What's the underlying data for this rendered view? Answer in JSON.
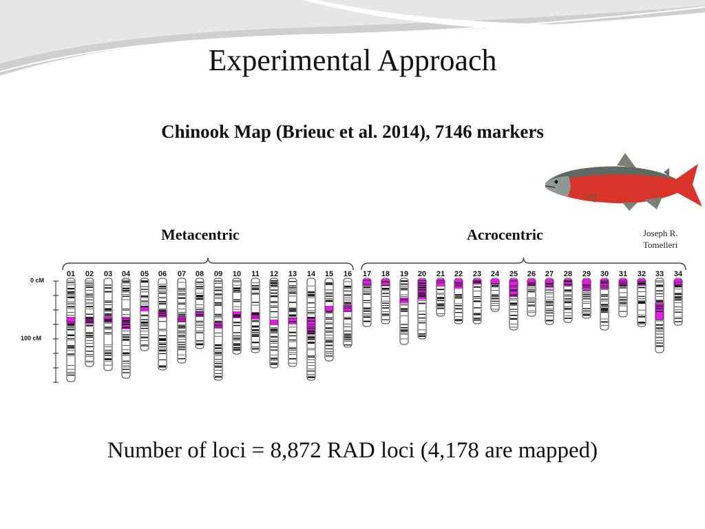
{
  "slide": {
    "title": "Experimental Approach",
    "subtitle": "Chinook Map (Brieuc et al. 2014), 7146 markers",
    "credit_line1": "Joseph R.",
    "credit_line2": "Tomelleri",
    "footer": "Number of loci = 8,872 RAD loci (4,178 are mapped)"
  },
  "linkage_map": {
    "axis_labels": [
      "0 cM",
      "100 cM"
    ],
    "groups": [
      {
        "label": "Metacentric",
        "chromosomes": [
          "01",
          "02",
          "03",
          "04",
          "05",
          "06",
          "07",
          "08",
          "09",
          "10",
          "11",
          "12",
          "13",
          "14",
          "15",
          "16"
        ]
      },
      {
        "label": "Acrocentric",
        "chromosomes": [
          "17",
          "18",
          "19",
          "20",
          "21",
          "22",
          "23",
          "24",
          "25",
          "26",
          "27",
          "28",
          "29",
          "30",
          "31",
          "32",
          "33",
          "34"
        ]
      }
    ],
    "colors": {
      "centromere": "#e020e0",
      "marker": "#111111",
      "outline": "#333333"
    }
  }
}
